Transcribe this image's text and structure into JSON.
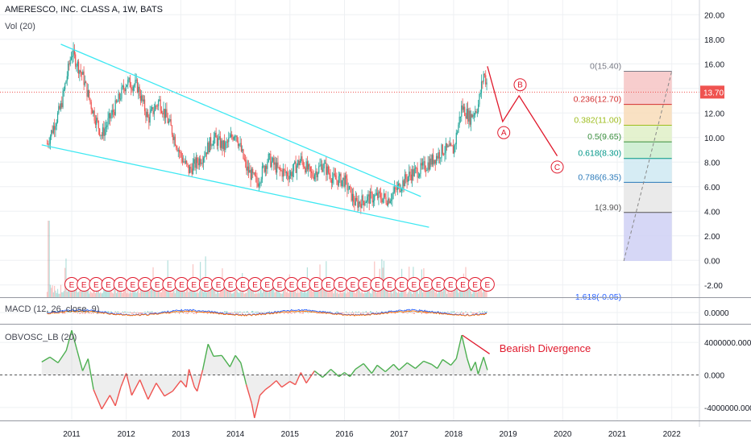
{
  "header": {
    "title": "AMERESCO, INC. CLASS A, 1W, BATS",
    "volume_label": "Vol (20)",
    "macd_label": "MACD (12, 26, close, 9)",
    "obv_label": "OBVOSC_LB (20)"
  },
  "colors": {
    "up": "#26a69a",
    "down": "#ef5350",
    "trendline": "#3ee8f2",
    "wave": "#e0192c",
    "grid": "#eef0f3",
    "obv_up": "#4caf50",
    "obv_down": "#ef5350",
    "current_price": "#ef5350"
  },
  "chart_data": [
    {
      "type": "candlestick",
      "title": "AMERESCO, INC. CLASS A, 1W, BATS",
      "x_ticks": [
        "2011",
        "2012",
        "2013",
        "2014",
        "2015",
        "2016",
        "2017",
        "2018",
        "2019",
        "2020",
        "2021",
        "2022"
      ],
      "y_ticks": [
        "20.00",
        "18.00",
        "16.00",
        "14.00",
        "12.00",
        "10.00",
        "8.00",
        "6.00",
        "4.00",
        "2.00",
        "0.00",
        "-2.00"
      ],
      "ylim": [
        -3.0,
        21.2
      ],
      "current_price": 13.7,
      "current_price_label": "13.70",
      "price_path": [
        [
          2010.55,
          9.5
        ],
        [
          2010.8,
          12.5
        ],
        [
          2011.0,
          17.0
        ],
        [
          2011.2,
          15.0
        ],
        [
          2011.4,
          12.0
        ],
        [
          2011.55,
          10.2
        ],
        [
          2011.8,
          12.5
        ],
        [
          2012.0,
          14.5
        ],
        [
          2012.2,
          14.2
        ],
        [
          2012.4,
          11.5
        ],
        [
          2012.6,
          13.0
        ],
        [
          2012.8,
          11.0
        ],
        [
          2013.0,
          8.5
        ],
        [
          2013.15,
          7.3
        ],
        [
          2013.4,
          8.5
        ],
        [
          2013.6,
          10.0
        ],
        [
          2013.8,
          9.2
        ],
        [
          2014.0,
          10.5
        ],
        [
          2014.2,
          7.5
        ],
        [
          2014.4,
          6.3
        ],
        [
          2014.6,
          8.3
        ],
        [
          2014.8,
          7.3
        ],
        [
          2015.0,
          7.0
        ],
        [
          2015.2,
          8.2
        ],
        [
          2015.4,
          6.9
        ],
        [
          2015.6,
          7.8
        ],
        [
          2015.8,
          6.6
        ],
        [
          2016.0,
          6.5
        ],
        [
          2016.2,
          4.6
        ],
        [
          2016.4,
          5.0
        ],
        [
          2016.6,
          5.2
        ],
        [
          2016.8,
          5.0
        ],
        [
          2017.0,
          6.0
        ],
        [
          2017.2,
          7.0
        ],
        [
          2017.4,
          7.4
        ],
        [
          2017.6,
          8.1
        ],
        [
          2017.8,
          9.0
        ],
        [
          2018.0,
          9.0
        ],
        [
          2018.15,
          12.5
        ],
        [
          2018.3,
          11.6
        ],
        [
          2018.45,
          12.6
        ],
        [
          2018.55,
          15.2
        ],
        [
          2018.62,
          14.3
        ]
      ],
      "earnings_label": "E",
      "earnings_count": 35,
      "volume_spike_label": "",
      "wedge": {
        "upper": [
          [
            2010.8,
            17.6
          ],
          [
            2017.4,
            5.2
          ]
        ],
        "lower": [
          [
            2010.45,
            9.4
          ],
          [
            2017.55,
            2.7
          ]
        ]
      },
      "elliott_wave": {
        "path": [
          [
            2018.62,
            15.8
          ],
          [
            2018.9,
            11.3
          ],
          [
            2019.2,
            13.4
          ],
          [
            2019.9,
            8.5
          ]
        ],
        "labels": [
          {
            "text": "A",
            "x": 2018.92,
            "y": 10.4
          },
          {
            "text": "B",
            "x": 2019.22,
            "y": 14.3
          },
          {
            "text": "C",
            "x": 2019.9,
            "y": 7.6
          }
        ]
      },
      "fibonacci": {
        "x_range": [
          2021.12,
          2022.0
        ],
        "levels": [
          {
            "ratio": "0",
            "price": 15.4,
            "label": "0(15.40)",
            "color": "#787b86",
            "fill": "#f6c4c4"
          },
          {
            "ratio": "0.236",
            "price": 12.7,
            "label": "0.236(12.70)",
            "color": "#d32f2f",
            "fill": "#f8dcb9"
          },
          {
            "ratio": "0.382",
            "price": 11.0,
            "label": "0.382(11.00)",
            "color": "#9ebd1e",
            "fill": "#dff0c7"
          },
          {
            "ratio": "0.5",
            "price": 9.65,
            "label": "0.5(9.65)",
            "color": "#388e3c",
            "fill": "#c9ecce"
          },
          {
            "ratio": "0.618",
            "price": 8.3,
            "label": "0.618(8.30)",
            "color": "#009688",
            "fill": "#cfe9f2"
          },
          {
            "ratio": "0.786",
            "price": 6.35,
            "label": "0.786(6.35)",
            "color": "#2979b9",
            "fill": "#e6e6e6"
          },
          {
            "ratio": "1",
            "price": 3.9,
            "label": "1(3.90)",
            "color": "#555555",
            "fill": "#cfd0f4"
          }
        ],
        "truncated_label": "1.618(-0.05)",
        "bottom_price": -0.05
      }
    },
    {
      "type": "line",
      "title": "MACD (12, 26, close, 9)",
      "y_ticks": [
        "0.0000"
      ]
    },
    {
      "type": "area",
      "title": "OBVOSC_LB (20)",
      "y_ticks": [
        "4000000.000",
        "0.000",
        "-4000000.000"
      ],
      "ylim": [
        -5600000,
        6200000
      ],
      "values": [
        [
          2010.45,
          1600000
        ],
        [
          2010.6,
          2200000
        ],
        [
          2010.75,
          1500000
        ],
        [
          2010.9,
          3000000
        ],
        [
          2011.0,
          5500000
        ],
        [
          2011.1,
          3000000
        ],
        [
          2011.2,
          500000
        ],
        [
          2011.3,
          2000000
        ],
        [
          2011.4,
          -1800000
        ],
        [
          2011.55,
          -4200000
        ],
        [
          2011.7,
          -2500000
        ],
        [
          2011.8,
          -3800000
        ],
        [
          2011.9,
          -1500000
        ],
        [
          2012.0,
          200000
        ],
        [
          2012.1,
          -2500000
        ],
        [
          2012.25,
          -600000
        ],
        [
          2012.4,
          -3000000
        ],
        [
          2012.55,
          -1000000
        ],
        [
          2012.7,
          -2600000
        ],
        [
          2012.85,
          -2000000
        ],
        [
          2013.0,
          -700000
        ],
        [
          2013.1,
          -1500000
        ],
        [
          2013.15,
          700000
        ],
        [
          2013.25,
          -1500000
        ],
        [
          2013.3,
          -2000000
        ],
        [
          2013.4,
          600000
        ],
        [
          2013.5,
          3800000
        ],
        [
          2013.6,
          2300000
        ],
        [
          2013.75,
          2400000
        ],
        [
          2013.9,
          1000000
        ],
        [
          2014.0,
          2400000
        ],
        [
          2014.1,
          1500000
        ],
        [
          2014.2,
          -1200000
        ],
        [
          2014.3,
          -3500000
        ],
        [
          2014.35,
          -5300000
        ],
        [
          2014.45,
          -2500000
        ],
        [
          2014.55,
          -1800000
        ],
        [
          2014.65,
          -1300000
        ],
        [
          2014.75,
          -700000
        ],
        [
          2014.85,
          -1500000
        ],
        [
          2015.0,
          -800000
        ],
        [
          2015.1,
          -1200000
        ],
        [
          2015.2,
          300000
        ],
        [
          2015.3,
          -1000000
        ],
        [
          2015.45,
          500000
        ],
        [
          2015.6,
          -300000
        ],
        [
          2015.75,
          700000
        ],
        [
          2015.9,
          -200000
        ],
        [
          2016.0,
          300000
        ],
        [
          2016.1,
          -200000
        ],
        [
          2016.2,
          700000
        ],
        [
          2016.35,
          1400000
        ],
        [
          2016.5,
          200000
        ],
        [
          2016.6,
          1200000
        ],
        [
          2016.75,
          400000
        ],
        [
          2016.9,
          1300000
        ],
        [
          2017.0,
          600000
        ],
        [
          2017.15,
          1500000
        ],
        [
          2017.3,
          800000
        ],
        [
          2017.45,
          1700000
        ],
        [
          2017.6,
          1300000
        ],
        [
          2017.7,
          800000
        ],
        [
          2017.8,
          1900000
        ],
        [
          2017.95,
          1200000
        ],
        [
          2018.05,
          2000000
        ],
        [
          2018.15,
          4900000
        ],
        [
          2018.25,
          2000000
        ],
        [
          2018.32,
          500000
        ],
        [
          2018.4,
          1600000
        ],
        [
          2018.45,
          100000
        ],
        [
          2018.55,
          2200000
        ],
        [
          2018.62,
          600000
        ]
      ],
      "divergence_line": [
        [
          2018.16,
          4900000
        ],
        [
          2018.66,
          2600000
        ]
      ],
      "annotation": "Bearish Divergence"
    }
  ]
}
